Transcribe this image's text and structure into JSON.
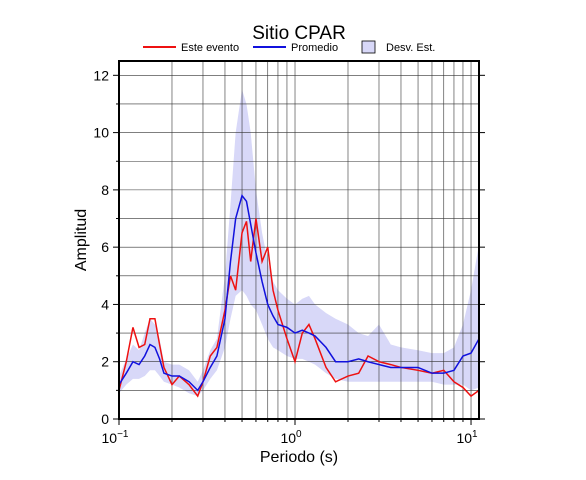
{
  "chart_data": {
    "type": "line",
    "title": "Sitio CPAR",
    "xlabel": "Periodo (s)",
    "ylabel": "Amplitud",
    "log_x": true,
    "grid": true,
    "x": [
      0.1,
      0.11,
      0.12,
      0.13,
      0.14,
      0.15,
      0.16,
      0.17,
      0.18,
      0.2,
      0.22,
      0.25,
      0.28,
      0.3,
      0.33,
      0.36,
      0.4,
      0.43,
      0.46,
      0.5,
      0.53,
      0.56,
      0.6,
      0.65,
      0.7,
      0.75,
      0.8,
      0.9,
      1.0,
      1.1,
      1.2,
      1.3,
      1.5,
      1.7,
      2.0,
      2.3,
      2.6,
      3.0,
      3.5,
      4,
      5,
      6,
      7,
      8,
      9,
      10,
      11.1
    ],
    "band": {
      "name": "Desv. Est.",
      "color": "#d8d8f8",
      "lower": [
        0.9,
        1.2,
        1.4,
        1.4,
        1.5,
        1.7,
        1.7,
        1.5,
        1.3,
        1.2,
        1.1,
        0.9,
        0.8,
        1.0,
        1.4,
        1.7,
        2.5,
        3.5,
        4.3,
        4.5,
        4.3,
        4.0,
        3.8,
        3.3,
        2.8,
        2.5,
        2.4,
        2.2,
        2.1,
        2.1,
        2.0,
        1.9,
        1.6,
        1.4,
        1.3,
        1.3,
        1.3,
        1.3,
        1.3,
        1.3,
        1.3,
        1.3,
        1.2,
        1.2,
        1.2,
        1.0,
        1.1
      ],
      "upper": [
        1.5,
        2.1,
        2.6,
        2.4,
        3.0,
        3.5,
        3.3,
        2.8,
        2.0,
        1.9,
        1.9,
        1.7,
        1.3,
        1.7,
        2.4,
        2.8,
        5.0,
        7.5,
        10.0,
        11.5,
        11.0,
        10.0,
        8.0,
        6.5,
        5.5,
        4.8,
        4.5,
        4.2,
        4.0,
        4.2,
        4.3,
        4.0,
        3.7,
        3.5,
        3.3,
        3.0,
        2.9,
        3.3,
        2.6,
        2.5,
        2.4,
        2.3,
        2.3,
        2.5,
        3.3,
        4.5,
        6.1
      ]
    },
    "series": [
      {
        "name": "Este evento",
        "color": "#ee1111",
        "values": [
          1.0,
          2.0,
          3.2,
          2.5,
          2.6,
          3.5,
          3.5,
          2.6,
          1.8,
          1.2,
          1.5,
          1.2,
          0.8,
          1.3,
          2.2,
          2.5,
          3.8,
          5.0,
          4.5,
          6.5,
          6.9,
          5.5,
          7.0,
          5.5,
          6.0,
          4.5,
          3.8,
          2.8,
          2.0,
          3.0,
          3.3,
          2.8,
          1.8,
          1.3,
          1.5,
          1.6,
          2.2,
          2.0,
          1.9,
          1.8,
          1.7,
          1.6,
          1.7,
          1.3,
          1.1,
          0.8,
          1.0
        ]
      },
      {
        "name": "Promedio",
        "color": "#1111dd",
        "values": [
          1.2,
          1.6,
          2.0,
          1.9,
          2.2,
          2.6,
          2.5,
          2.1,
          1.6,
          1.5,
          1.5,
          1.3,
          1.0,
          1.3,
          1.8,
          2.2,
          3.5,
          5.5,
          7.0,
          7.8,
          7.6,
          6.8,
          5.8,
          4.8,
          4.0,
          3.6,
          3.3,
          3.2,
          3.0,
          3.1,
          3.0,
          2.9,
          2.5,
          2.0,
          2.0,
          2.1,
          2.0,
          1.9,
          1.8,
          1.8,
          1.8,
          1.6,
          1.6,
          1.7,
          2.2,
          2.3,
          2.8
        ]
      }
    ],
    "xlim": [
      0.1,
      11.1
    ],
    "ylim": [
      0,
      12.5
    ],
    "xticks": [
      {
        "value": 0.1,
        "label": "10",
        "exponent": "−1"
      },
      {
        "value": 1,
        "label": "10",
        "exponent": "0"
      },
      {
        "value": 10,
        "label": "10",
        "exponent": "1"
      }
    ],
    "xminor": [
      0.2,
      0.3,
      0.4,
      0.5,
      0.6,
      0.7,
      0.8,
      0.9,
      2,
      3,
      4,
      5,
      6,
      7,
      8,
      9
    ],
    "yticks": [
      0,
      2,
      4,
      6,
      8,
      10,
      12
    ],
    "yminor": [
      1,
      3,
      5,
      7,
      9,
      11
    ]
  }
}
